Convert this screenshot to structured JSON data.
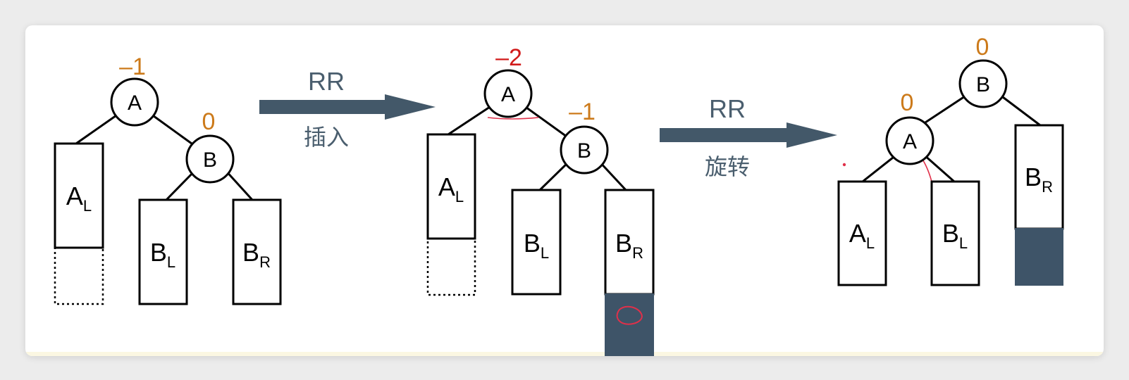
{
  "colors": {
    "balance_normal": "#cc7a1a",
    "balance_alert": "#d11a1a",
    "arrow": "#435869",
    "fill_dark": "#3e5468",
    "annotation": "#e0304a"
  },
  "arrows": [
    {
      "top_label": "RR",
      "bottom_label": "插入"
    },
    {
      "top_label": "RR",
      "bottom_label": "旋转"
    }
  ],
  "trees": [
    {
      "name": "before-insertion",
      "nodes": [
        {
          "label": "A",
          "balance": "–1"
        },
        {
          "label": "B",
          "balance": "0"
        }
      ],
      "subtrees": [
        {
          "base": "A",
          "sub": "L"
        },
        {
          "base": "B",
          "sub": "L"
        },
        {
          "base": "B",
          "sub": "R"
        }
      ]
    },
    {
      "name": "after-insertion",
      "nodes": [
        {
          "label": "A",
          "balance": "–2"
        },
        {
          "label": "B",
          "balance": "–1"
        }
      ],
      "subtrees": [
        {
          "base": "A",
          "sub": "L"
        },
        {
          "base": "B",
          "sub": "L"
        },
        {
          "base": "B",
          "sub": "R"
        }
      ]
    },
    {
      "name": "after-rotation",
      "nodes": [
        {
          "label": "B",
          "balance": "0"
        },
        {
          "label": "A",
          "balance": "0"
        }
      ],
      "subtrees": [
        {
          "base": "A",
          "sub": "L"
        },
        {
          "base": "B",
          "sub": "L"
        },
        {
          "base": "B",
          "sub": "R"
        }
      ]
    }
  ]
}
